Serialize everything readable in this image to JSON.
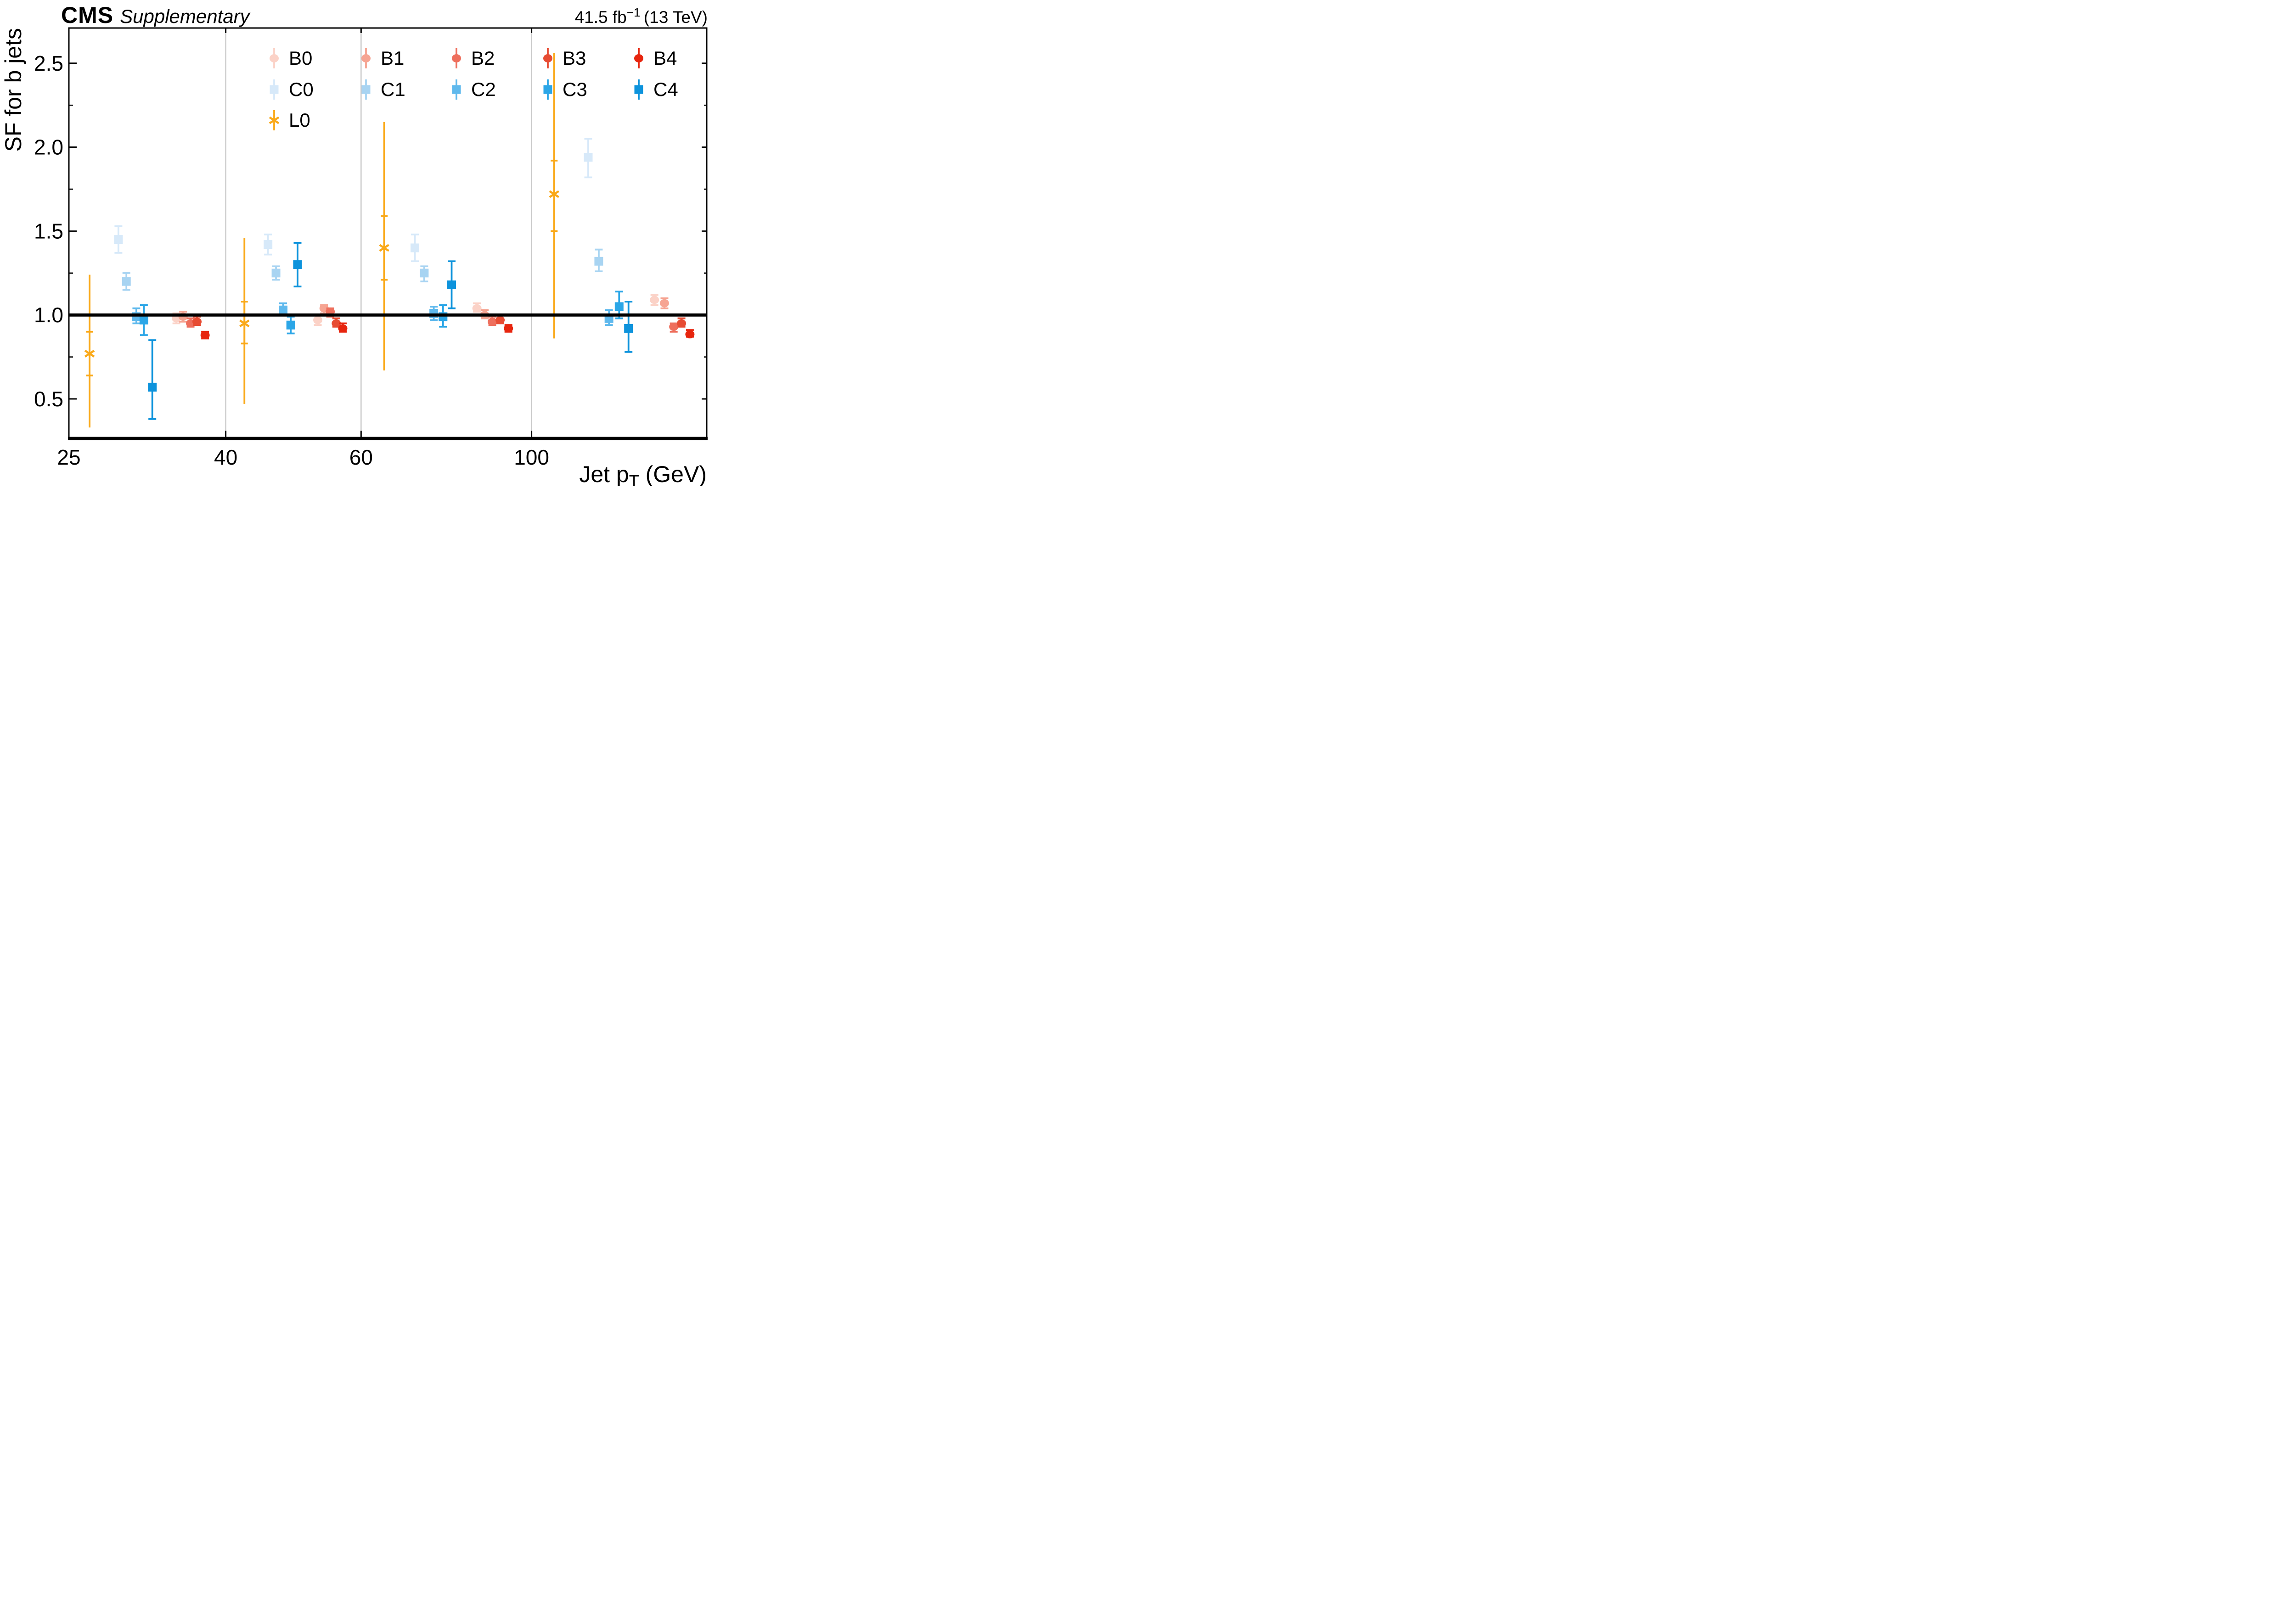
{
  "header": {
    "experiment": "CMS",
    "supplementary": "Supplementary",
    "lumi_value": "41.5 fb",
    "lumi_exp": "−1",
    "lumi_energy": " (13 TeV)"
  },
  "chart_data": {
    "type": "scatter",
    "title": "",
    "xlabel": {
      "pre": "Jet p",
      "sub": "T",
      "post": " (GeV)"
    },
    "ylabel": "SF for b jets",
    "xscale": "log",
    "xlim": [
      25,
      169
    ],
    "ylim": [
      0.27,
      2.71
    ],
    "x_gridlines": [
      40,
      60,
      100
    ],
    "x_major_ticks": [
      40,
      60,
      100
    ],
    "x_tick_labels": [
      {
        "text": "25",
        "at": 25
      },
      {
        "text": "40",
        "at": 40
      },
      {
        "text": "60",
        "at": 60
      },
      {
        "text": "100",
        "at": 100
      }
    ],
    "y_major_ticks": [
      0.5,
      1.0,
      1.5,
      2.0,
      2.5
    ],
    "y_minor_ticks": [
      0.75,
      1.25,
      1.75,
      2.25
    ],
    "y_tick_labels": [
      {
        "text": "0.5",
        "at": 0.5
      },
      {
        "text": "1.0",
        "at": 1.0
      },
      {
        "text": "1.5",
        "at": 1.5
      },
      {
        "text": "2.0",
        "at": 2.0
      },
      {
        "text": "2.5",
        "at": 2.5
      }
    ],
    "reference_line_y": 1.0,
    "pt_bins": [
      [
        25,
        40
      ],
      [
        40,
        60
      ],
      [
        60,
        100
      ],
      [
        100,
        169
      ]
    ],
    "grid_color": "#c9c9c9",
    "frame_color": "#000000",
    "series": [
      {
        "name": "L0",
        "marker": "cross",
        "color": "#faa919",
        "points": [
          {
            "x": 26.6,
            "y": 0.77,
            "stat_lo": 0.64,
            "stat_hi": 0.9,
            "lo": 0.33,
            "hi": 1.24
          },
          {
            "x": 42.3,
            "y": 0.95,
            "stat_lo": 0.83,
            "stat_hi": 1.08,
            "lo": 0.47,
            "hi": 1.46
          },
          {
            "x": 64.3,
            "y": 1.4,
            "stat_lo": 1.21,
            "stat_hi": 1.59,
            "lo": 0.67,
            "hi": 2.15
          },
          {
            "x": 107.0,
            "y": 1.72,
            "stat_lo": 1.5,
            "stat_hi": 1.92,
            "lo": 0.86,
            "hi": 2.56
          }
        ]
      },
      {
        "name": "C0",
        "marker": "square",
        "color": "#d7e9f9",
        "points": [
          {
            "x": 29.0,
            "y": 1.45,
            "lo": 1.37,
            "hi": 1.53
          },
          {
            "x": 45.4,
            "y": 1.42,
            "lo": 1.36,
            "hi": 1.48
          },
          {
            "x": 70.5,
            "y": 1.4,
            "lo": 1.32,
            "hi": 1.48
          },
          {
            "x": 118.5,
            "y": 1.94,
            "lo": 1.82,
            "hi": 2.05
          }
        ]
      },
      {
        "name": "C1",
        "marker": "square",
        "color": "#a8d4f2",
        "points": [
          {
            "x": 29.7,
            "y": 1.2,
            "lo": 1.15,
            "hi": 1.25
          },
          {
            "x": 46.5,
            "y": 1.25,
            "lo": 1.21,
            "hi": 1.29
          },
          {
            "x": 72.5,
            "y": 1.25,
            "lo": 1.2,
            "hi": 1.29
          },
          {
            "x": 122.3,
            "y": 1.32,
            "lo": 1.26,
            "hi": 1.39
          }
        ]
      },
      {
        "name": "C2",
        "marker": "square",
        "color": "#5fb9ed",
        "points": [
          {
            "x": 30.6,
            "y": 0.99,
            "lo": 0.95,
            "hi": 1.04
          },
          {
            "x": 47.5,
            "y": 1.03,
            "lo": 1.0,
            "hi": 1.07
          },
          {
            "x": 74.6,
            "y": 1.01,
            "lo": 0.97,
            "hi": 1.05
          },
          {
            "x": 126.1,
            "y": 0.98,
            "lo": 0.94,
            "hi": 1.03
          }
        ]
      },
      {
        "name": "C3",
        "marker": "square",
        "color": "#2ba6e7",
        "points": [
          {
            "x": 31.3,
            "y": 0.97,
            "lo": 0.88,
            "hi": 1.06
          },
          {
            "x": 48.6,
            "y": 0.94,
            "lo": 0.89,
            "hi": 0.99
          },
          {
            "x": 76.7,
            "y": 0.99,
            "lo": 0.93,
            "hi": 1.06
          },
          {
            "x": 130.0,
            "y": 1.05,
            "lo": 0.98,
            "hi": 1.14
          }
        ]
      },
      {
        "name": "C4",
        "marker": "square",
        "color": "#0d93dc",
        "points": [
          {
            "x": 32.1,
            "y": 0.57,
            "lo": 0.38,
            "hi": 0.85
          },
          {
            "x": 49.6,
            "y": 1.3,
            "lo": 1.17,
            "hi": 1.43
          },
          {
            "x": 78.7,
            "y": 1.18,
            "lo": 1.04,
            "hi": 1.32
          },
          {
            "x": 133.7,
            "y": 0.92,
            "lo": 0.78,
            "hi": 1.08
          }
        ]
      },
      {
        "name": "B0",
        "marker": "circle",
        "color": "#fbd2c7",
        "points": [
          {
            "x": 34.5,
            "y": 0.98,
            "lo": 0.95,
            "hi": 1.01
          },
          {
            "x": 52.7,
            "y": 0.97,
            "lo": 0.94,
            "hi": 1.0
          },
          {
            "x": 84.9,
            "y": 1.04,
            "lo": 1.02,
            "hi": 1.07
          },
          {
            "x": 144.5,
            "y": 1.09,
            "lo": 1.06,
            "hi": 1.12
          }
        ]
      },
      {
        "name": "B1",
        "marker": "circle",
        "color": "#f6a492",
        "points": [
          {
            "x": 35.2,
            "y": 0.99,
            "lo": 0.96,
            "hi": 1.02
          },
          {
            "x": 53.7,
            "y": 1.04,
            "lo": 1.01,
            "hi": 1.06
          },
          {
            "x": 86.9,
            "y": 1.0,
            "lo": 0.98,
            "hi": 1.03
          },
          {
            "x": 148.9,
            "y": 1.07,
            "lo": 1.04,
            "hi": 1.1
          }
        ]
      },
      {
        "name": "B2",
        "marker": "circle",
        "color": "#ee6f5d",
        "points": [
          {
            "x": 36.0,
            "y": 0.95,
            "lo": 0.93,
            "hi": 0.98
          },
          {
            "x": 54.7,
            "y": 1.02,
            "lo": 0.99,
            "hi": 1.04
          },
          {
            "x": 88.9,
            "y": 0.96,
            "lo": 0.94,
            "hi": 0.99
          },
          {
            "x": 153.1,
            "y": 0.93,
            "lo": 0.9,
            "hi": 0.95
          }
        ]
      },
      {
        "name": "B3",
        "marker": "circle",
        "color": "#e74c33",
        "points": [
          {
            "x": 36.7,
            "y": 0.96,
            "lo": 0.94,
            "hi": 0.99
          },
          {
            "x": 55.7,
            "y": 0.95,
            "lo": 0.93,
            "hi": 0.98
          },
          {
            "x": 91.0,
            "y": 0.97,
            "lo": 0.95,
            "hi": 1.0
          },
          {
            "x": 156.7,
            "y": 0.95,
            "lo": 0.93,
            "hi": 0.98
          }
        ]
      },
      {
        "name": "B4",
        "marker": "circle",
        "color": "#e7250e",
        "points": [
          {
            "x": 37.6,
            "y": 0.88,
            "lo": 0.86,
            "hi": 0.9
          },
          {
            "x": 56.8,
            "y": 0.92,
            "lo": 0.9,
            "hi": 0.95
          },
          {
            "x": 93.3,
            "y": 0.92,
            "lo": 0.9,
            "hi": 0.94
          },
          {
            "x": 160.7,
            "y": 0.885,
            "lo": 0.87,
            "hi": 0.91
          }
        ]
      }
    ]
  },
  "legend": {
    "entries": [
      {
        "label": "B0",
        "series": "B0",
        "row": 0,
        "col": 0
      },
      {
        "label": "B1",
        "series": "B1",
        "row": 0,
        "col": 1
      },
      {
        "label": "B2",
        "series": "B2",
        "row": 0,
        "col": 2
      },
      {
        "label": "B3",
        "series": "B3",
        "row": 0,
        "col": 3
      },
      {
        "label": "B4",
        "series": "B4",
        "row": 0,
        "col": 4
      },
      {
        "label": "C0",
        "series": "C0",
        "row": 1,
        "col": 0
      },
      {
        "label": "C1",
        "series": "C1",
        "row": 1,
        "col": 1
      },
      {
        "label": "C2",
        "series": "C2",
        "row": 1,
        "col": 2
      },
      {
        "label": "C3",
        "series": "C3",
        "row": 1,
        "col": 3
      },
      {
        "label": "C4",
        "series": "C4",
        "row": 1,
        "col": 4
      },
      {
        "label": "L0",
        "series": "L0",
        "row": 2,
        "col": 0
      }
    ]
  }
}
